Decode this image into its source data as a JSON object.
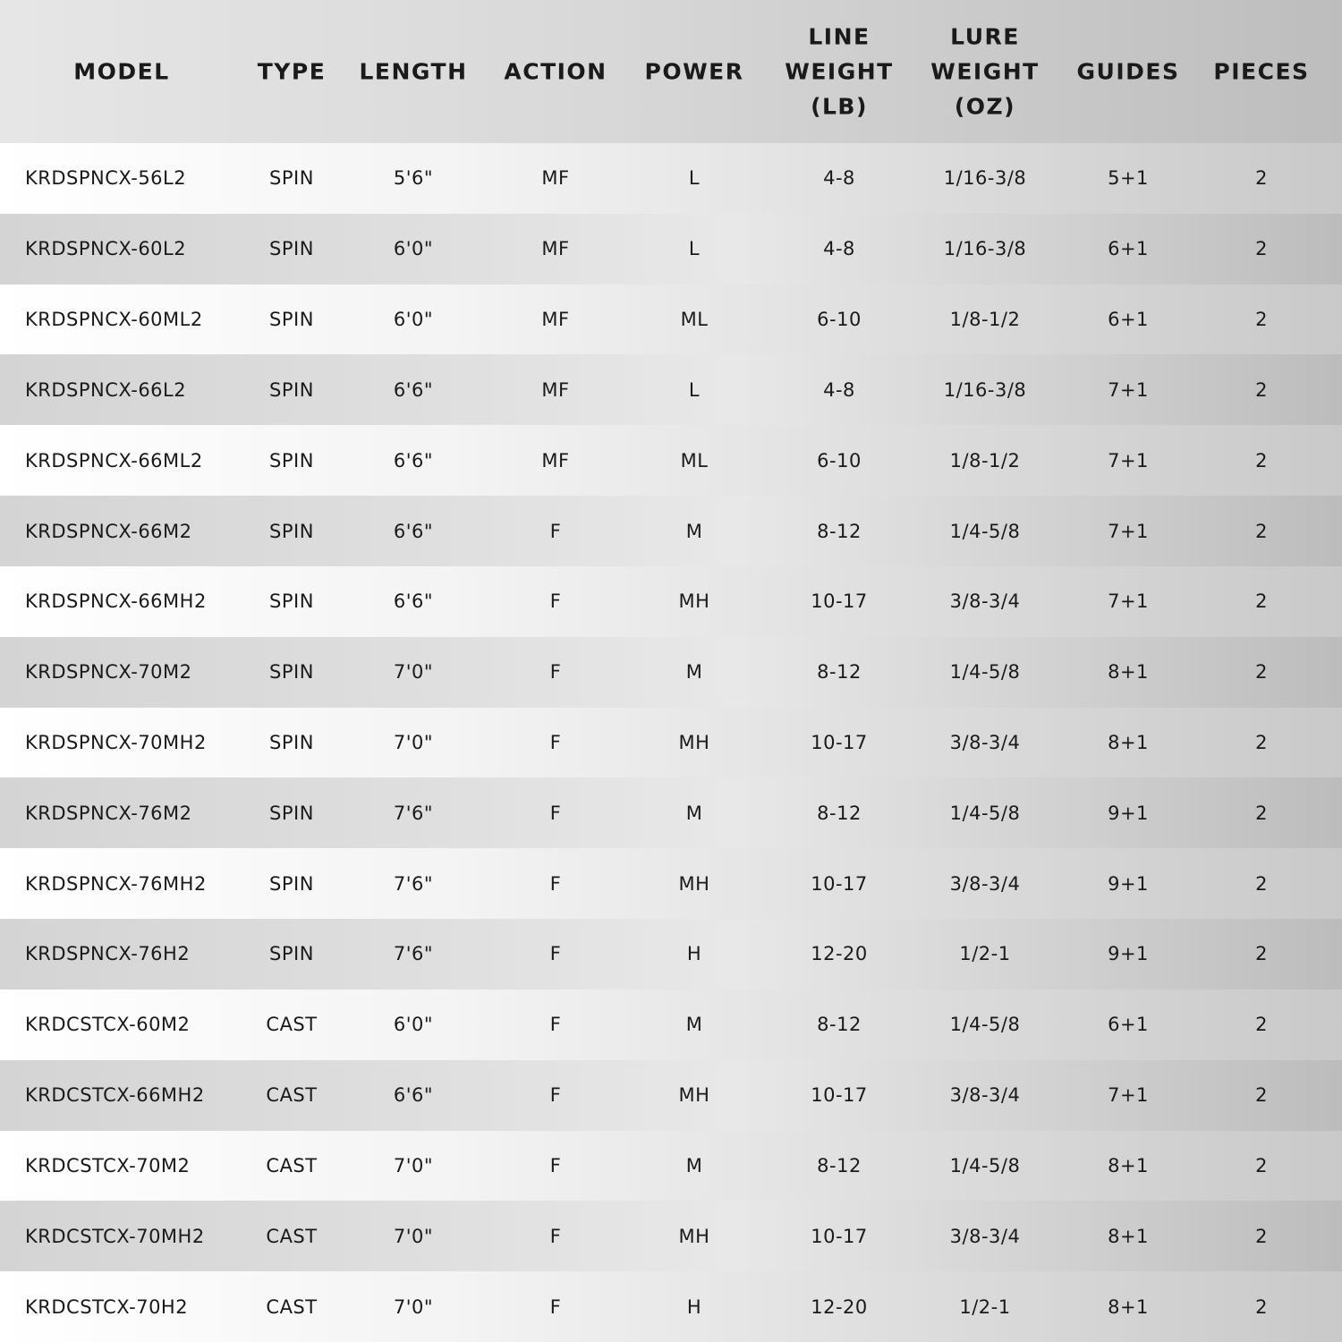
{
  "table": {
    "header": [
      "MODEL",
      "TYPE",
      "LENGTH",
      "ACTION",
      "POWER",
      "LINE WEIGHT (LB)",
      "LURE WEIGHT (OZ)",
      "GUIDES",
      "PIECES"
    ],
    "rows": [
      [
        "KRDSPNCX-56L2",
        "SPIN",
        "5'6\"",
        "MF",
        "L",
        "4-8",
        "1/16-3/8",
        "5+1",
        "2"
      ],
      [
        "KRDSPNCX-60L2",
        "SPIN",
        "6'0\"",
        "MF",
        "L",
        "4-8",
        "1/16-3/8",
        "6+1",
        "2"
      ],
      [
        "KRDSPNCX-60ML2",
        "SPIN",
        "6'0\"",
        "MF",
        "ML",
        "6-10",
        "1/8-1/2",
        "6+1",
        "2"
      ],
      [
        "KRDSPNCX-66L2",
        "SPIN",
        "6'6\"",
        "MF",
        "L",
        "4-8",
        "1/16-3/8",
        "7+1",
        "2"
      ],
      [
        "KRDSPNCX-66ML2",
        "SPIN",
        "6'6\"",
        "MF",
        "ML",
        "6-10",
        "1/8-1/2",
        "7+1",
        "2"
      ],
      [
        "KRDSPNCX-66M2",
        "SPIN",
        "6'6\"",
        "F",
        "M",
        "8-12",
        "1/4-5/8",
        "7+1",
        "2"
      ],
      [
        "KRDSPNCX-66MH2",
        "SPIN",
        "6'6\"",
        "F",
        "MH",
        "10-17",
        "3/8-3/4",
        "7+1",
        "2"
      ],
      [
        "KRDSPNCX-70M2",
        "SPIN",
        "7'0\"",
        "F",
        "M",
        "8-12",
        "1/4-5/8",
        "8+1",
        "2"
      ],
      [
        "KRDSPNCX-70MH2",
        "SPIN",
        "7'0\"",
        "F",
        "MH",
        "10-17",
        "3/8-3/4",
        "8+1",
        "2"
      ],
      [
        "KRDSPNCX-76M2",
        "SPIN",
        "7'6\"",
        "F",
        "M",
        "8-12",
        "1/4-5/8",
        "9+1",
        "2"
      ],
      [
        "KRDSPNCX-76MH2",
        "SPIN",
        "7'6\"",
        "F",
        "MH",
        "10-17",
        "3/8-3/4",
        "9+1",
        "2"
      ],
      [
        "KRDSPNCX-76H2",
        "SPIN",
        "7'6\"",
        "F",
        "H",
        "12-20",
        "1/2-1",
        "9+1",
        "2"
      ],
      [
        "KRDCSTCX-60M2",
        "CAST",
        "6'0\"",
        "F",
        "M",
        "8-12",
        "1/4-5/8",
        "6+1",
        "2"
      ],
      [
        "KRDCSTCX-66MH2",
        "CAST",
        "6'6\"",
        "F",
        "MH",
        "10-17",
        "3/8-3/4",
        "7+1",
        "2"
      ],
      [
        "KRDCSTCX-70M2",
        "CAST",
        "7'0\"",
        "F",
        "M",
        "8-12",
        "1/4-5/8",
        "8+1",
        "2"
      ],
      [
        "KRDCSTCX-70MH2",
        "CAST",
        "7'0\"",
        "F",
        "MH",
        "10-17",
        "3/8-3/4",
        "8+1",
        "2"
      ],
      [
        "KRDCSTCX-70H2",
        "CAST",
        "7'0\"",
        "F",
        "H",
        "12-20",
        "1/2-1",
        "8+1",
        "2"
      ]
    ]
  }
}
